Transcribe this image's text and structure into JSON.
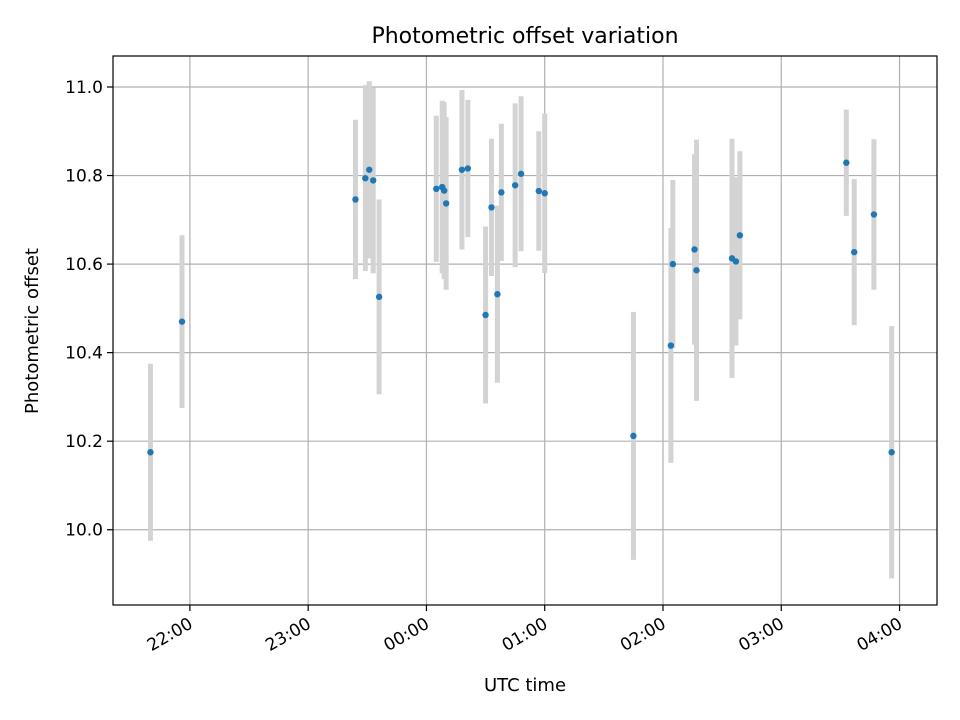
{
  "chart_data": {
    "type": "scatter",
    "title": "Photometric offset variation",
    "xlabel": "UTC time",
    "ylabel": "Photometric offset",
    "x_axis": {
      "kind": "time",
      "range": [
        "21:21",
        "04:19"
      ],
      "ticks": [
        "22:00",
        "23:00",
        "00:00",
        "01:00",
        "02:00",
        "03:00",
        "04:00"
      ]
    },
    "y_axis": {
      "range": [
        9.83,
        11.07
      ],
      "ticks": [
        "10.0",
        "10.2",
        "10.4",
        "10.6",
        "10.8",
        "11.0"
      ]
    },
    "grid": true,
    "series": [
      {
        "color": "#1f77b4",
        "error_color": "#d3d3d3",
        "points": [
          {
            "x": "21:40",
            "y": 10.175,
            "err": 0.2
          },
          {
            "x": "21:56",
            "y": 10.47,
            "err": 0.195
          },
          {
            "x": "23:24",
            "y": 10.746,
            "err": 0.18
          },
          {
            "x": "23:29",
            "y": 10.794,
            "err": 0.21
          },
          {
            "x": "23:31",
            "y": 10.813,
            "err": 0.2
          },
          {
            "x": "23:33",
            "y": 10.789,
            "err": 0.21
          },
          {
            "x": "23:36",
            "y": 10.526,
            "err": 0.22
          },
          {
            "x": "00:05",
            "y": 10.77,
            "err": 0.165
          },
          {
            "x": "00:08",
            "y": 10.774,
            "err": 0.195
          },
          {
            "x": "00:09",
            "y": 10.766,
            "err": 0.2
          },
          {
            "x": "00:10",
            "y": 10.737,
            "err": 0.195
          },
          {
            "x": "00:18",
            "y": 10.813,
            "err": 0.18
          },
          {
            "x": "00:21",
            "y": 10.816,
            "err": 0.155
          },
          {
            "x": "00:30",
            "y": 10.485,
            "err": 0.2
          },
          {
            "x": "00:33",
            "y": 10.728,
            "err": 0.155
          },
          {
            "x": "00:36",
            "y": 10.532,
            "err": 0.2
          },
          {
            "x": "00:38",
            "y": 10.762,
            "err": 0.155
          },
          {
            "x": "00:45",
            "y": 10.778,
            "err": 0.185
          },
          {
            "x": "00:48",
            "y": 10.804,
            "err": 0.175
          },
          {
            "x": "00:57",
            "y": 10.765,
            "err": 0.135
          },
          {
            "x": "01:00",
            "y": 10.76,
            "err": 0.18
          },
          {
            "x": "01:45",
            "y": 10.212,
            "err": 0.28
          },
          {
            "x": "02:04",
            "y": 10.416,
            "err": 0.265
          },
          {
            "x": "02:05",
            "y": 10.6,
            "err": 0.19
          },
          {
            "x": "02:16",
            "y": 10.633,
            "err": 0.215
          },
          {
            "x": "02:17",
            "y": 10.586,
            "err": 0.295
          },
          {
            "x": "02:35",
            "y": 10.613,
            "err": 0.27
          },
          {
            "x": "02:37",
            "y": 10.606,
            "err": 0.19
          },
          {
            "x": "02:39",
            "y": 10.665,
            "err": 0.19
          },
          {
            "x": "03:33",
            "y": 10.829,
            "err": 0.12
          },
          {
            "x": "03:37",
            "y": 10.627,
            "err": 0.165
          },
          {
            "x": "03:47",
            "y": 10.712,
            "err": 0.17
          },
          {
            "x": "03:56",
            "y": 10.175,
            "err": 0.285
          }
        ]
      }
    ]
  }
}
